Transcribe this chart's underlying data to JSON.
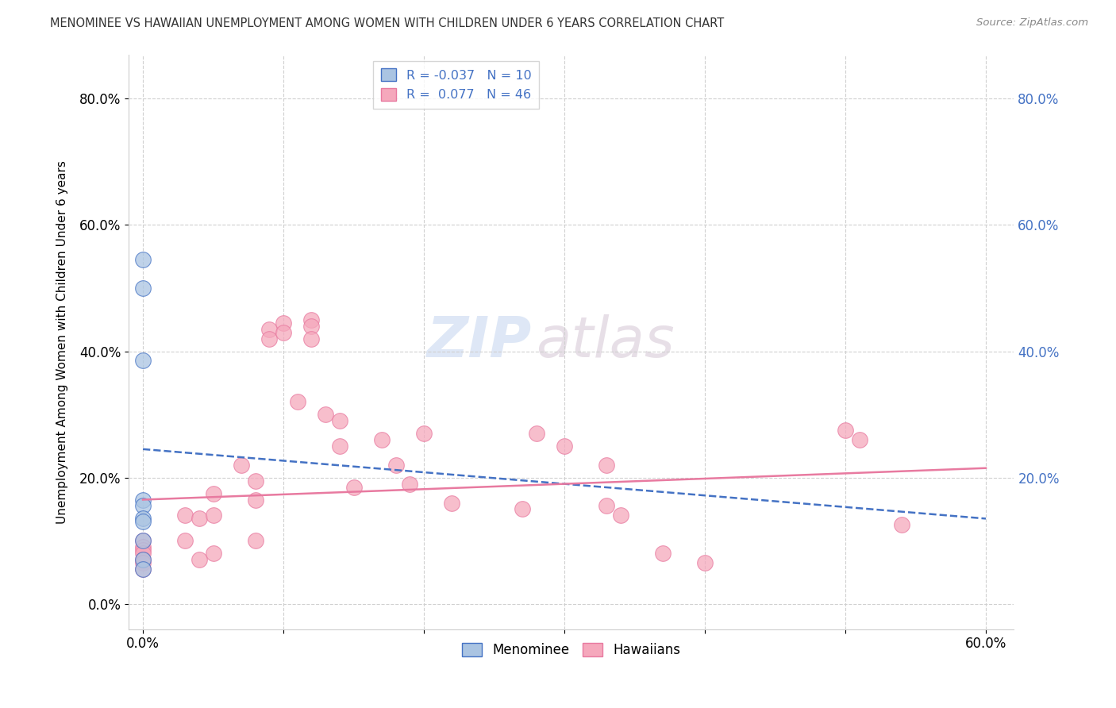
{
  "title": "MENOMINEE VS HAWAIIAN UNEMPLOYMENT AMONG WOMEN WITH CHILDREN UNDER 6 YEARS CORRELATION CHART",
  "source": "Source: ZipAtlas.com",
  "ylabel": "Unemployment Among Women with Children Under 6 years",
  "xlim": [
    -0.01,
    0.62
  ],
  "ylim": [
    -0.04,
    0.87
  ],
  "xtick_values": [
    0.0,
    0.1,
    0.2,
    0.3,
    0.4,
    0.5,
    0.6
  ],
  "xtick_labels_show": [
    "0.0%",
    "",
    "",
    "",
    "",
    "",
    "60.0%"
  ],
  "ytick_values_left": [
    0.0,
    0.2,
    0.4,
    0.6,
    0.8
  ],
  "ytick_labels_left": [
    "0.0%",
    "20.0%",
    "40.0%",
    "60.0%",
    "80.0%"
  ],
  "ytick_values_right": [
    0.2,
    0.4,
    0.6,
    0.8
  ],
  "ytick_labels_right": [
    "20.0%",
    "40.0%",
    "60.0%",
    "80.0%"
  ],
  "menominee_color": "#aac4e2",
  "hawaiian_color": "#f5a8bc",
  "menominee_edge_color": "#4472c4",
  "hawaiian_edge_color": "#e87aa0",
  "menominee_line_color": "#4472c4",
  "hawaiian_line_color": "#e87aa0",
  "menominee_R": -0.037,
  "menominee_N": 10,
  "hawaiian_R": 0.077,
  "hawaiian_N": 46,
  "legend_label_1": "Menominee",
  "legend_label_2": "Hawaiians",
  "watermark_zip": "ZIP",
  "watermark_atlas": "atlas",
  "menominee_x": [
    0.0,
    0.0,
    0.0,
    0.0,
    0.0,
    0.0,
    0.0,
    0.0,
    0.0,
    0.0
  ],
  "menominee_y": [
    0.545,
    0.5,
    0.385,
    0.165,
    0.155,
    0.135,
    0.13,
    0.1,
    0.07,
    0.055
  ],
  "hawaiian_x": [
    0.0,
    0.0,
    0.0,
    0.0,
    0.0,
    0.0,
    0.0,
    0.03,
    0.03,
    0.04,
    0.04,
    0.05,
    0.05,
    0.05,
    0.07,
    0.08,
    0.08,
    0.08,
    0.09,
    0.09,
    0.1,
    0.1,
    0.11,
    0.12,
    0.12,
    0.12,
    0.13,
    0.14,
    0.14,
    0.15,
    0.17,
    0.18,
    0.19,
    0.2,
    0.22,
    0.27,
    0.28,
    0.3,
    0.33,
    0.33,
    0.34,
    0.37,
    0.4,
    0.5,
    0.51,
    0.54
  ],
  "hawaiian_y": [
    0.1,
    0.09,
    0.085,
    0.08,
    0.07,
    0.065,
    0.055,
    0.14,
    0.1,
    0.135,
    0.07,
    0.175,
    0.14,
    0.08,
    0.22,
    0.195,
    0.165,
    0.1,
    0.435,
    0.42,
    0.445,
    0.43,
    0.32,
    0.45,
    0.44,
    0.42,
    0.3,
    0.29,
    0.25,
    0.185,
    0.26,
    0.22,
    0.19,
    0.27,
    0.16,
    0.15,
    0.27,
    0.25,
    0.22,
    0.155,
    0.14,
    0.08,
    0.065,
    0.275,
    0.26,
    0.125
  ],
  "men_trend_x": [
    0.0,
    0.6
  ],
  "men_trend_y": [
    0.245,
    0.135
  ],
  "haw_trend_x": [
    0.0,
    0.6
  ],
  "haw_trend_y": [
    0.165,
    0.215
  ],
  "background_color": "#ffffff",
  "grid_color": "#d0d0d0"
}
